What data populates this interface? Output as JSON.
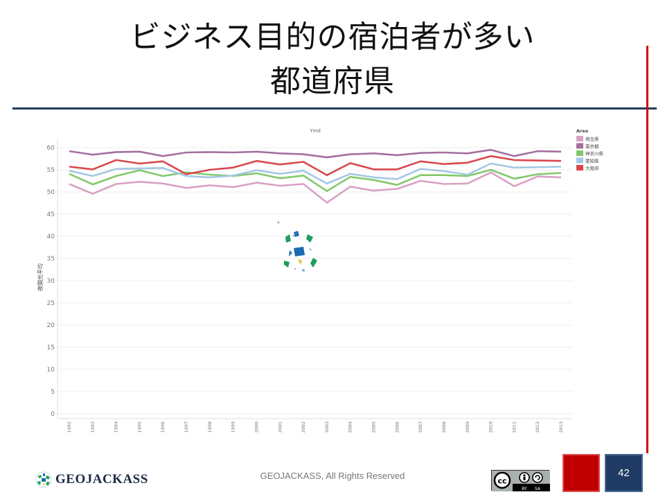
{
  "slide": {
    "title_line1": "ビジネス目的の宿泊者が多い",
    "title_line2": "都道府県",
    "footer": "GEOJACKASS, All Rights Reserved",
    "logo_text": "GEOJACKASS",
    "page_number": "42",
    "cc_labels": [
      "BY",
      "SA"
    ],
    "accent_red": "#d40000",
    "accent_navy": "#1f3b5a"
  },
  "chart_data": {
    "type": "line",
    "title": "Ymd",
    "xlabel": "",
    "ylabel": "夜間光平均",
    "legend_title": "Area",
    "legend_position": "top-right",
    "grid": true,
    "ylim": [
      0,
      60
    ],
    "yticks": [
      0,
      5,
      10,
      15,
      20,
      25,
      30,
      35,
      40,
      45,
      50,
      55,
      60
    ],
    "x": [
      "1992",
      "1993",
      "1994",
      "1995",
      "1996",
      "1997",
      "1998",
      "1999",
      "2000",
      "2001",
      "2002",
      "2003",
      "2004",
      "2005",
      "2006",
      "2007",
      "2008",
      "2009",
      "2010",
      "2011",
      "2012",
      "2013"
    ],
    "series": [
      {
        "name": "埼玉県",
        "color": "#d9a0c4",
        "values": [
          51.8,
          49.6,
          51.8,
          52.3,
          51.9,
          50.9,
          51.5,
          51.1,
          52.1,
          51.4,
          51.8,
          47.6,
          51.2,
          50.3,
          50.7,
          52.5,
          51.8,
          51.9,
          54.4,
          51.3,
          53.5,
          53.3
        ]
      },
      {
        "name": "東京都",
        "color": "#a3709f",
        "values": [
          59.2,
          58.4,
          59.0,
          59.1,
          58.1,
          58.9,
          59.0,
          58.9,
          59.1,
          58.7,
          58.5,
          57.8,
          58.5,
          58.7,
          58.3,
          58.8,
          58.9,
          58.7,
          59.5,
          58.1,
          59.2,
          59.1
        ]
      },
      {
        "name": "神奈川県",
        "color": "#82c86b",
        "values": [
          54.1,
          51.7,
          53.6,
          54.9,
          53.6,
          54.4,
          53.9,
          53.6,
          54.2,
          53.1,
          53.7,
          50.2,
          53.4,
          52.7,
          51.6,
          53.8,
          53.8,
          53.6,
          55.0,
          53.0,
          54.0,
          54.3
        ]
      },
      {
        "name": "愛知県",
        "color": "#a4c8e4",
        "values": [
          54.8,
          53.6,
          55.2,
          55.3,
          55.4,
          53.6,
          53.3,
          53.7,
          54.9,
          54.1,
          54.8,
          51.9,
          54.1,
          53.3,
          52.9,
          55.2,
          54.7,
          53.9,
          56.4,
          55.5,
          55.6,
          55.7
        ]
      },
      {
        "name": "大阪府",
        "color": "#d9474c",
        "values": [
          55.7,
          55.1,
          57.2,
          56.4,
          56.9,
          54.0,
          55.0,
          55.5,
          57.0,
          56.2,
          56.8,
          53.8,
          56.5,
          55.1,
          55.1,
          56.9,
          56.3,
          56.6,
          58.1,
          57.2,
          57.1,
          57.0
        ]
      }
    ]
  }
}
